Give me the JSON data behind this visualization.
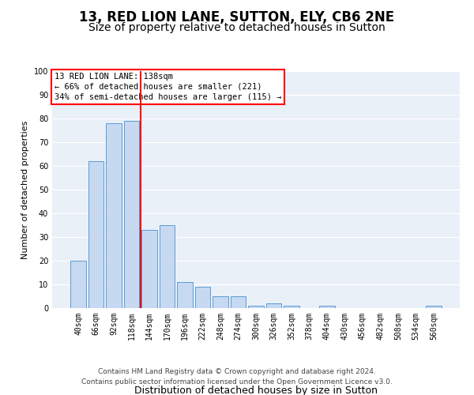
{
  "title1": "13, RED LION LANE, SUTTON, ELY, CB6 2NE",
  "title2": "Size of property relative to detached houses in Sutton",
  "xlabel": "Distribution of detached houses by size in Sutton",
  "ylabel": "Number of detached properties",
  "categories": [
    "40sqm",
    "66sqm",
    "92sqm",
    "118sqm",
    "144sqm",
    "170sqm",
    "196sqm",
    "222sqm",
    "248sqm",
    "274sqm",
    "300sqm",
    "326sqm",
    "352sqm",
    "378sqm",
    "404sqm",
    "430sqm",
    "456sqm",
    "482sqm",
    "508sqm",
    "534sqm",
    "560sqm"
  ],
  "values": [
    20,
    62,
    78,
    79,
    33,
    35,
    11,
    9,
    5,
    5,
    1,
    2,
    1,
    0,
    1,
    0,
    0,
    0,
    0,
    0,
    1
  ],
  "bar_color": "#c6d9f0",
  "bar_edge_color": "#5b9bd5",
  "vline_color": "red",
  "vline_pos": 3.5,
  "ylim": [
    0,
    100
  ],
  "yticks": [
    0,
    10,
    20,
    30,
    40,
    50,
    60,
    70,
    80,
    90,
    100
  ],
  "annotation_title": "13 RED LION LANE: 138sqm",
  "annotation_line1": "← 66% of detached houses are smaller (221)",
  "annotation_line2": "34% of semi-detached houses are larger (115) →",
  "footer1": "Contains HM Land Registry data © Crown copyright and database right 2024.",
  "footer2": "Contains public sector information licensed under the Open Government Licence v3.0.",
  "bg_color": "#eaf0f8",
  "grid_color": "#ffffff",
  "title1_fontsize": 12,
  "title2_fontsize": 10,
  "xlabel_fontsize": 9,
  "ylabel_fontsize": 8,
  "tick_fontsize": 7,
  "footer_fontsize": 6.5,
  "annot_fontsize": 7.5
}
